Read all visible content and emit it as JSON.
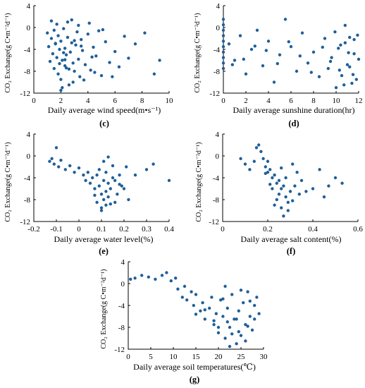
{
  "figure": {
    "dot_color": "#1f5f99",
    "panels": [
      {
        "label": "(c)",
        "xlabel": "Daily average  wind speed(m•s⁻¹)",
        "ylabel": "CO₂ Exchange(g C•m⁻²d⁻¹)",
        "x_ticks": [
          "0",
          "2",
          "4",
          "6",
          "8",
          "10"
        ],
        "y_ticks": [
          "4",
          "0",
          "-4",
          "-8",
          "-12"
        ]
      },
      {
        "label": "(d)",
        "xlabel": "Daily average  sunshine duration(hr)",
        "ylabel": "CO₂ Exchange(g C•m⁻²d⁻¹)",
        "x_ticks": [
          "0",
          "2",
          "4",
          "6",
          "8",
          "10",
          "12"
        ],
        "y_ticks": [
          "4",
          "0",
          "-4",
          "-8",
          "-12"
        ]
      },
      {
        "label": "(e)",
        "xlabel": "Daily average  water level(%)",
        "ylabel": "CO₂ Exchange(g C•m⁻²d⁻¹)",
        "x_ticks": [
          "-0.2",
          "-0.1",
          "0",
          "0.1",
          "0.2",
          "0.3",
          "0.4"
        ],
        "y_ticks": [
          "4",
          "0",
          "-4",
          "-8",
          "-12"
        ]
      },
      {
        "label": "(f)",
        "xlabel": "Daily average  salt content(%)",
        "ylabel": "CO₂ Exchange(g C•m⁻²d⁻¹)",
        "x_ticks": [
          "0",
          "0.2",
          "0.4",
          "0.6"
        ],
        "y_ticks": [
          "4",
          "0",
          "-4",
          "-8",
          "-12"
        ]
      },
      {
        "label": "(g)",
        "xlabel": "Daily average  soil temperatures(℃)",
        "ylabel": "CO₂ Exchange(g C•m⁻²d⁻¹)",
        "x_ticks": [
          "0",
          "5",
          "10",
          "15",
          "20",
          "25",
          "30"
        ],
        "y_ticks": [
          "4",
          "0",
          "-4",
          "-8",
          "-12"
        ]
      }
    ]
  },
  "chart_data": [
    {
      "type": "scatter",
      "panel": "(c)",
      "xlabel": "Daily average  wind speed(m•s⁻¹)",
      "ylabel": "CO₂ Exchange(g C•m⁻²d⁻¹)",
      "xlim": [
        0,
        10
      ],
      "ylim": [
        -12,
        4
      ],
      "x": [
        1.0,
        1.1,
        1.2,
        1.3,
        1.4,
        1.5,
        1.5,
        1.6,
        1.7,
        1.8,
        1.8,
        1.9,
        2.0,
        2.0,
        2.1,
        2.2,
        2.3,
        2.3,
        2.4,
        2.5,
        2.6,
        2.7,
        2.8,
        2.9,
        3.0,
        3.1,
        3.2,
        3.3,
        3.4,
        3.5,
        3.6,
        3.8,
        4.0,
        4.2,
        4.4,
        4.6,
        4.8,
        5.0,
        5.3,
        5.6,
        6.0,
        6.3,
        6.7,
        7.0,
        7.5,
        8.2,
        8.9,
        9.3,
        1.3,
        1.7,
        2.1,
        2.5,
        2.9,
        3.3,
        3.7,
        4.1,
        4.5,
        5.1,
        5.8,
        2.0,
        2.4,
        2.8,
        1.9,
        2.2,
        3.0,
        3.5,
        4.3,
        2.6,
        1.6,
        2.3
      ],
      "y": [
        -1.0,
        -3.5,
        -6.2,
        -2.0,
        -4.8,
        -0.5,
        -7.5,
        -3.0,
        -5.5,
        -1.5,
        -8.5,
        -4.0,
        -2.5,
        -9.5,
        -6.0,
        -0.2,
        -3.8,
        -7.0,
        -5.0,
        -1.8,
        -10.5,
        -4.5,
        -2.8,
        -6.5,
        -8.0,
        -3.2,
        -0.8,
        -5.8,
        -9.0,
        -2.2,
        -4.2,
        -6.8,
        -1.2,
        -7.8,
        -3.6,
        -5.2,
        -0.6,
        -8.8,
        -2.6,
        -6.4,
        -4.4,
        -7.2,
        -1.6,
        -5.6,
        -3.0,
        -1.0,
        -8.5,
        -6.0,
        1.2,
        0.6,
        -11.0,
        1.0,
        -10.0,
        0.4,
        -9.6,
        0.8,
        -8.2,
        -0.4,
        -9.0,
        -11.5,
        -7.4,
        1.4,
        -6.6,
        -4.6,
        -2.4,
        -3.4,
        -5.4,
        -7.6,
        -2.9,
        -5.9
      ]
    },
    {
      "type": "scatter",
      "panel": "(d)",
      "xlabel": "Daily average  sunshine duration(hr)",
      "ylabel": "CO₂ Exchange(g C•m⁻²d⁻¹)",
      "xlim": [
        0,
        12
      ],
      "ylim": [
        -12,
        4
      ],
      "x": [
        0.0,
        0.0,
        0.0,
        0.0,
        0.0,
        0.0,
        0.0,
        0.0,
        0.0,
        0.0,
        0.5,
        1.0,
        1.5,
        2.0,
        2.5,
        3.0,
        3.5,
        4.0,
        4.5,
        5.0,
        5.5,
        6.0,
        6.5,
        7.0,
        7.5,
        8.0,
        8.5,
        9.0,
        9.3,
        9.6,
        9.9,
        10.2,
        10.5,
        10.8,
        11.0,
        11.2,
        11.4,
        11.6,
        11.8,
        12.0,
        10.0,
        10.4,
        10.8,
        11.2,
        11.6,
        9.5,
        8.8,
        7.8,
        6.8,
        5.8,
        4.8,
        3.8,
        2.8,
        1.8,
        0.8,
        11.9,
        11.5,
        11.1,
        10.7,
        10.3
      ],
      "y": [
        1.5,
        0.5,
        -0.5,
        -1.5,
        -2.5,
        -3.5,
        -4.5,
        -5.5,
        -6.5,
        -7.5,
        -3.0,
        -6.0,
        -1.5,
        -8.5,
        -4.0,
        -0.5,
        -7.0,
        -2.5,
        -10.0,
        -5.0,
        1.5,
        -3.5,
        -8.0,
        -1.0,
        -6.5,
        -4.5,
        -9.0,
        -2.0,
        -7.5,
        -5.5,
        -0.8,
        -3.8,
        -8.8,
        -2.8,
        -6.8,
        -1.8,
        -10.2,
        -4.8,
        -9.5,
        -5.8,
        -11.0,
        -3.2,
        0.4,
        -7.2,
        -2.2,
        -6.2,
        -3.6,
        -8.2,
        -5.2,
        -2.6,
        -6.6,
        -4.2,
        -3.4,
        -5.8,
        -6.8,
        -1.4,
        -8.6,
        -4.6,
        -10.5,
        -7.8
      ]
    },
    {
      "type": "scatter",
      "panel": "(e)",
      "xlabel": "Daily average  water level(%)",
      "ylabel": "CO₂ Exchange(g C•m⁻²d⁻¹)",
      "xlim": [
        -0.2,
        0.4
      ],
      "ylim": [
        -12,
        4
      ],
      "x": [
        -0.13,
        -0.12,
        -0.11,
        -0.1,
        -0.09,
        -0.08,
        -0.06,
        -0.04,
        -0.02,
        0.0,
        0.02,
        0.03,
        0.04,
        0.05,
        0.06,
        0.07,
        0.08,
        0.08,
        0.09,
        0.1,
        0.1,
        0.11,
        0.11,
        0.12,
        0.12,
        0.13,
        0.13,
        0.14,
        0.15,
        0.16,
        0.17,
        0.18,
        0.19,
        0.2,
        0.21,
        0.22,
        0.25,
        0.3,
        0.33,
        0.4,
        0.09,
        0.11,
        0.13,
        0.15,
        0.1,
        0.12,
        0.14,
        0.16,
        0.18,
        0.07
      ],
      "y": [
        -1.0,
        -0.5,
        -1.5,
        1.5,
        -2.0,
        -0.8,
        -2.5,
        -1.8,
        -3.0,
        -2.2,
        -3.5,
        -4.5,
        -3.0,
        -5.0,
        -4.0,
        -6.0,
        -3.5,
        -8.5,
        -5.5,
        -7.0,
        -9.5,
        -4.5,
        -8.0,
        -6.5,
        -3.0,
        -7.5,
        -5.0,
        -6.0,
        -4.0,
        -8.5,
        -7.0,
        -3.5,
        -5.5,
        -6.0,
        -2.0,
        -8.0,
        -3.5,
        -2.5,
        -1.5,
        -4.5,
        -2.5,
        -1.0,
        -0.2,
        -1.8,
        -10.0,
        -9.0,
        -8.8,
        -4.5,
        -5.2,
        -7.2
      ]
    },
    {
      "type": "scatter",
      "panel": "(f)",
      "xlabel": "Daily average  salt content(%)",
      "ylabel": "CO₂ Exchange(g C•m⁻²d⁻¹)",
      "xlim": [
        0,
        0.6
      ],
      "ylim": [
        -12,
        4
      ],
      "x": [
        0.08,
        0.1,
        0.12,
        0.14,
        0.15,
        0.16,
        0.17,
        0.18,
        0.19,
        0.2,
        0.2,
        0.21,
        0.22,
        0.22,
        0.23,
        0.24,
        0.24,
        0.25,
        0.25,
        0.26,
        0.26,
        0.27,
        0.27,
        0.28,
        0.28,
        0.29,
        0.3,
        0.31,
        0.32,
        0.33,
        0.34,
        0.35,
        0.37,
        0.4,
        0.43,
        0.45,
        0.47,
        0.5,
        0.53,
        0.29,
        0.23,
        0.21,
        0.19,
        0.26,
        0.31
      ],
      "y": [
        -0.5,
        -1.5,
        -2.5,
        -1.0,
        1.5,
        2.0,
        0.8,
        -0.5,
        -2.0,
        -1.0,
        -3.0,
        -2.5,
        -4.0,
        -6.0,
        -3.5,
        -5.0,
        -8.0,
        -4.5,
        -7.0,
        -6.0,
        -9.5,
        -5.5,
        -11.0,
        -7.5,
        -4.0,
        -8.5,
        -6.5,
        -1.5,
        -5.5,
        -3.0,
        -7.0,
        -4.5,
        -6.5,
        -6.0,
        -2.5,
        -7.5,
        -5.5,
        -4.0,
        -5.0,
        -10.0,
        -9.0,
        -5.2,
        -3.2,
        -2.2,
        -8.2
      ]
    },
    {
      "type": "scatter",
      "panel": "(g)",
      "xlabel": "Daily average  soil temperatures(℃)",
      "ylabel": "CO₂ Exchange(g C•m⁻²d⁻¹)",
      "xlim": [
        0,
        30
      ],
      "ylim": [
        -12,
        4
      ],
      "x": [
        0.5,
        1.5,
        3,
        4.5,
        6,
        7.5,
        8.5,
        9.5,
        10.5,
        11,
        12,
        12.5,
        13,
        14,
        14.5,
        15,
        16,
        16.5,
        17,
        18,
        18.5,
        19,
        19.5,
        20,
        20.5,
        21,
        21.5,
        22,
        22.5,
        23,
        23.5,
        24,
        24.5,
        25,
        25.5,
        26,
        26.5,
        27,
        27.5,
        28,
        28.5,
        29,
        20,
        22,
        24,
        26,
        21,
        23,
        25,
        27,
        19,
        17,
        15,
        28,
        22.5,
        24.5,
        26.5,
        21.5
      ],
      "y": [
        0.8,
        1.0,
        1.5,
        1.2,
        0.8,
        1.5,
        2.0,
        0.5,
        1.0,
        -1.0,
        -2.5,
        -0.5,
        -3.0,
        -1.5,
        -4.0,
        -2.0,
        -5.0,
        -3.5,
        -6.5,
        -4.5,
        -2.5,
        -7.5,
        -5.5,
        -9.0,
        -3.0,
        -6.0,
        -10.0,
        -4.5,
        -8.0,
        -2.0,
        -6.5,
        -11.0,
        -5.0,
        -9.5,
        -3.5,
        -7.5,
        -1.5,
        -6.0,
        -8.5,
        -4.0,
        -2.5,
        -5.5,
        -8.0,
        -7.0,
        -6.5,
        -10.5,
        -2.8,
        -9.2,
        -1.2,
        -3.2,
        -6.8,
        -4.8,
        -5.6,
        -6.5,
        -11.5,
        -8.8,
        -7.8,
        -0.5
      ]
    }
  ]
}
